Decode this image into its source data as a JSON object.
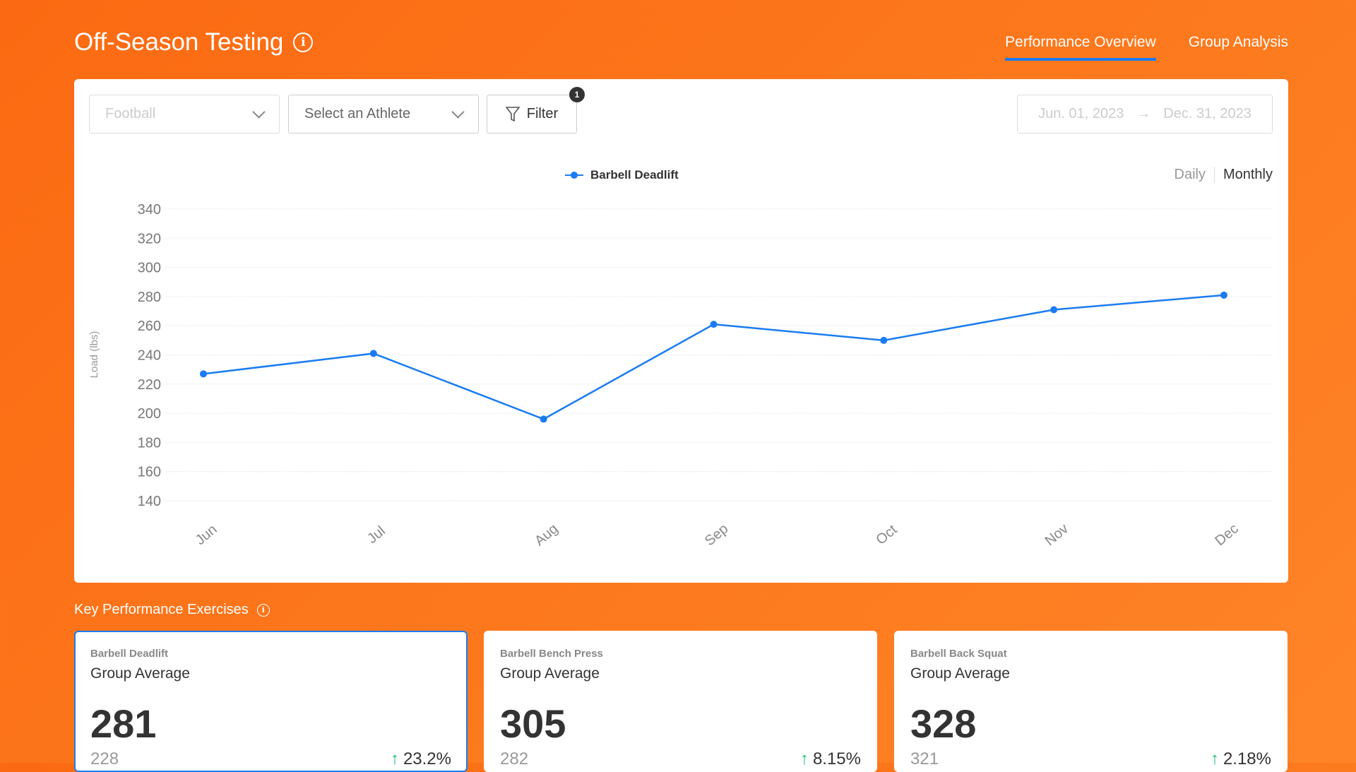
{
  "header": {
    "title": "Off-Season Testing",
    "tabs": [
      {
        "label": "Performance Overview",
        "active": true
      },
      {
        "label": "Group Analysis",
        "active": false
      }
    ]
  },
  "filters": {
    "sport": "Football",
    "athlete_placeholder": "Select an Athlete",
    "filter_label": "Filter",
    "filter_count": "1",
    "date_start": "Jun. 01, 2023",
    "date_end": "Dec. 31, 2023",
    "granularity": [
      "Daily",
      "Monthly"
    ],
    "active_granularity": "Monthly"
  },
  "chart_data": {
    "type": "line",
    "title": "",
    "xlabel": "",
    "ylabel": "Load (lbs)",
    "categories": [
      "Jun",
      "Jul",
      "Aug",
      "Sep",
      "Oct",
      "Nov",
      "Dec"
    ],
    "series": [
      {
        "name": "Barbell Deadlift",
        "color": "#1a7cf0",
        "values": [
          227,
          241,
          196,
          261,
          250,
          271,
          281
        ]
      }
    ],
    "ylim": [
      140,
      340
    ],
    "yticks": [
      340,
      320,
      300,
      280,
      260,
      240,
      220,
      200,
      180,
      160,
      140
    ],
    "grid": true,
    "legend": "top-center"
  },
  "kpi": {
    "section_title": "Key Performance Exercises",
    "cards": [
      {
        "exercise": "Barbell Deadlift",
        "label": "Group Average",
        "value": "281",
        "previous": "228",
        "change": "23.2%",
        "selected": true
      },
      {
        "exercise": "Barbell Bench Press",
        "label": "Group Average",
        "value": "305",
        "previous": "282",
        "change": "8.15%",
        "selected": false
      },
      {
        "exercise": "Barbell Back Squat",
        "label": "Group Average",
        "value": "328",
        "previous": "321",
        "change": "2.18%",
        "selected": false
      }
    ]
  }
}
